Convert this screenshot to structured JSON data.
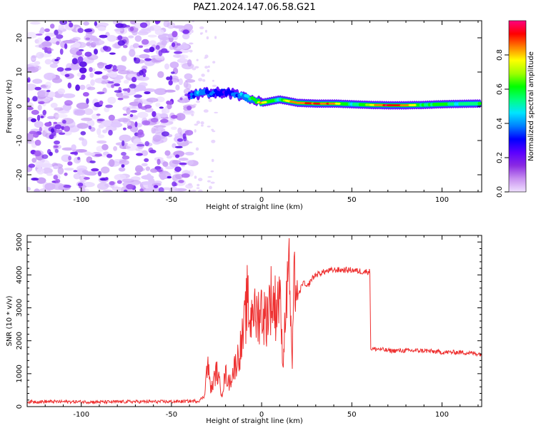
{
  "figure": {
    "title": "PAZ1.2024.147.06.58.G21"
  },
  "chart_data": [
    {
      "type": "heatmap",
      "xlabel": "Height of straight line (km)",
      "ylabel": "Frequency (Hz)",
      "xlim": [
        -130,
        122
      ],
      "ylim": [
        -25,
        25
      ],
      "xticks": [
        -100,
        -50,
        0,
        50,
        100
      ],
      "yticks": [
        -20,
        -10,
        0,
        10,
        20
      ],
      "colorbar": {
        "label": "Normalized spectral amplitude",
        "range": [
          0,
          1
        ],
        "ticks": [
          0.0,
          0.2,
          0.4,
          0.6,
          0.8
        ],
        "colors": [
          "#f0e0ff",
          "#c890f0",
          "#8a2be2",
          "#5b00ff",
          "#0000ff",
          "#0080ff",
          "#00e5ff",
          "#00ff80",
          "#00ff00",
          "#a0ff00",
          "#ffff00",
          "#ff8000",
          "#ff0000",
          "#ff0080"
        ]
      },
      "ridge": {
        "x": [
          -40,
          -35,
          -30,
          -25,
          -20,
          -15,
          -10,
          -5,
          0,
          5,
          10,
          15,
          20,
          30,
          40,
          50,
          60,
          70,
          80,
          90,
          100,
          110,
          122
        ],
        "freq": [
          3,
          3.5,
          4,
          4,
          4,
          3.5,
          3,
          2,
          1,
          1.5,
          2,
          1.5,
          1,
          0.8,
          0.8,
          0.6,
          0.4,
          0.3,
          0.3,
          0.4,
          0.6,
          0.7,
          0.8
        ],
        "amplitude": [
          0.3,
          0.45,
          0.35,
          0.3,
          0.3,
          0.35,
          0.4,
          0.6,
          0.8,
          0.6,
          0.5,
          0.8,
          0.85,
          0.9,
          0.85,
          0.5,
          0.75,
          0.95,
          0.85,
          0.55,
          0.6,
          0.5,
          0.55
        ]
      }
    },
    {
      "type": "line",
      "xlabel": "Height of straight line (km)",
      "ylabel": "SNR (10 * v/v)",
      "xlim": [
        -130,
        122
      ],
      "ylim": [
        0,
        5200
      ],
      "xticks": [
        -100,
        -50,
        0,
        50,
        100
      ],
      "yticks": [
        0,
        1000,
        2000,
        3000,
        4000,
        5000
      ],
      "color": "#ee3030",
      "series": [
        {
          "x": [
            -130,
            -110,
            -90,
            -70,
            -50,
            -35,
            -32,
            -30,
            -28,
            -25,
            -22,
            -20,
            -18,
            -15,
            -12,
            -10,
            -8,
            -6,
            -5,
            -4,
            -2,
            0,
            2,
            5,
            8,
            10,
            11,
            12,
            13,
            14,
            15,
            16,
            17,
            18,
            20,
            23,
            25,
            28,
            30,
            35,
            40,
            45,
            50,
            55,
            60,
            60.5,
            65,
            70,
            80,
            90,
            100,
            110,
            122
          ],
          "y": [
            150,
            150,
            140,
            150,
            150,
            170,
            300,
            1300,
            500,
            1100,
            400,
            1000,
            700,
            1200,
            1700,
            2200,
            3200,
            2500,
            3500,
            2700,
            2800,
            3000,
            2600,
            3300,
            3000,
            3600,
            2200,
            1300,
            2800,
            3200,
            5200,
            2600,
            1300,
            3900,
            3300,
            3800,
            3600,
            3900,
            4000,
            4100,
            4150,
            4150,
            4150,
            4100,
            4100,
            1750,
            1750,
            1700,
            1700,
            1700,
            1650,
            1650,
            1600
          ]
        }
      ]
    }
  ]
}
